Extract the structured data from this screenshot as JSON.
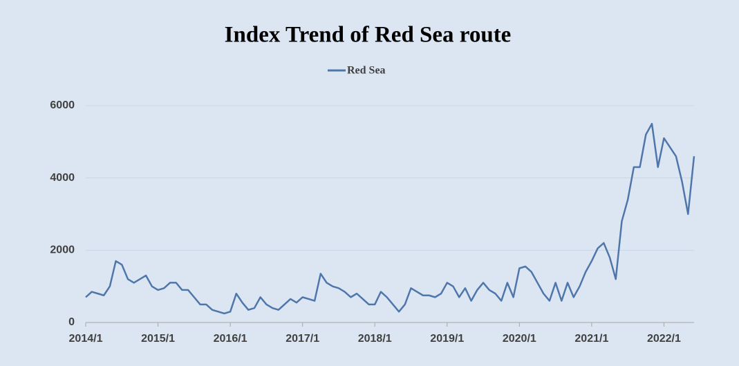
{
  "chart_data": {
    "type": "line",
    "title": "Index Trend of Red Sea route",
    "legend": "top",
    "grid": true,
    "x": [
      "2014/1",
      "2014/2",
      "2014/3",
      "2014/4",
      "2014/5",
      "2014/6",
      "2014/7",
      "2014/8",
      "2014/9",
      "2014/10",
      "2014/11",
      "2014/12",
      "2015/1",
      "2015/2",
      "2015/3",
      "2015/4",
      "2015/5",
      "2015/6",
      "2015/7",
      "2015/8",
      "2015/9",
      "2015/10",
      "2015/11",
      "2015/12",
      "2016/1",
      "2016/2",
      "2016/3",
      "2016/4",
      "2016/5",
      "2016/6",
      "2016/7",
      "2016/8",
      "2016/9",
      "2016/10",
      "2016/11",
      "2016/12",
      "2017/1",
      "2017/2",
      "2017/3",
      "2017/4",
      "2017/5",
      "2017/6",
      "2017/7",
      "2017/8",
      "2017/9",
      "2017/10",
      "2017/11",
      "2017/12",
      "2018/1",
      "2018/2",
      "2018/3",
      "2018/4",
      "2018/5",
      "2018/6",
      "2018/7",
      "2018/8",
      "2018/9",
      "2018/10",
      "2018/11",
      "2018/12",
      "2019/1",
      "2019/2",
      "2019/3",
      "2019/4",
      "2019/5",
      "2019/6",
      "2019/7",
      "2019/8",
      "2019/9",
      "2019/10",
      "2019/11",
      "2019/12",
      "2020/1",
      "2020/2",
      "2020/3",
      "2020/4",
      "2020/5",
      "2020/6",
      "2020/7",
      "2020/8",
      "2020/9",
      "2020/10",
      "2020/11",
      "2020/12",
      "2021/1",
      "2021/2",
      "2021/3",
      "2021/4",
      "2021/5",
      "2021/6",
      "2021/7",
      "2021/8",
      "2021/9",
      "2021/10",
      "2021/11",
      "2021/12",
      "2022/1",
      "2022/2",
      "2022/3",
      "2022/4",
      "2022/5",
      "2022/6"
    ],
    "series": [
      {
        "name": "Red Sea",
        "color": "#4f76aa",
        "values": [
          700,
          850,
          800,
          750,
          1000,
          1700,
          1600,
          1200,
          1100,
          1200,
          1300,
          1000,
          900,
          950,
          1100,
          1100,
          900,
          900,
          700,
          500,
          500,
          350,
          300,
          250,
          300,
          800,
          550,
          350,
          400,
          700,
          500,
          400,
          350,
          500,
          650,
          550,
          700,
          650,
          600,
          1350,
          1100,
          1000,
          950,
          850,
          700,
          800,
          650,
          500,
          500,
          850,
          700,
          500,
          300,
          500,
          950,
          850,
          750,
          750,
          700,
          800,
          1100,
          1000,
          700,
          950,
          600,
          900,
          1100,
          900,
          800,
          600,
          1100,
          700,
          1500,
          1550,
          1400,
          1100,
          800,
          600,
          1100,
          600,
          1100,
          700,
          1000,
          1400,
          1700,
          2050,
          2200,
          1800,
          1200,
          2800,
          3400,
          4300,
          4300,
          5200,
          5500,
          4300,
          5100,
          4850,
          4600,
          3900,
          3000,
          4600
        ]
      }
    ],
    "ylim": [
      0,
      6000
    ],
    "yticks": [
      0,
      2000,
      4000,
      6000
    ],
    "xticks": [
      "2014/1",
      "2015/1",
      "2016/1",
      "2017/1",
      "2018/1",
      "2019/1",
      "2020/1",
      "2021/1",
      "2022/1"
    ]
  }
}
